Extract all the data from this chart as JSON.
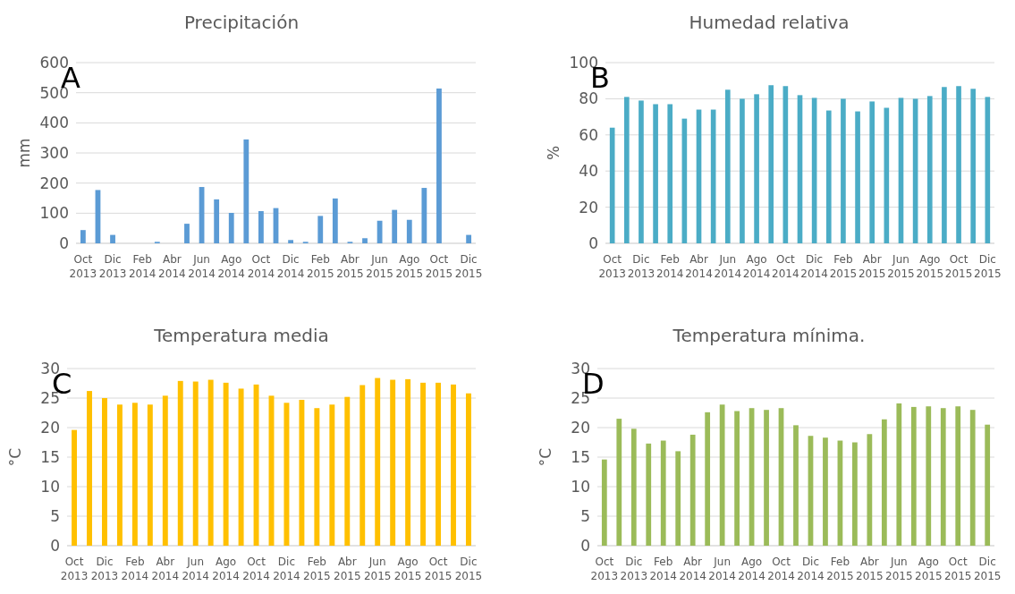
{
  "chart_data": [
    {
      "type": "bar",
      "title": "Precipitación",
      "ylabel": "mm",
      "annotations": [
        "A"
      ],
      "color": "#5b9bd5",
      "grid": "y",
      "ylim": [
        0,
        600
      ],
      "yticks": [
        0,
        100,
        200,
        300,
        400,
        500,
        600
      ],
      "categories": [
        "Oct 2013",
        null,
        "Dic 2013",
        null,
        "Feb 2014",
        null,
        "Abr 2014",
        null,
        "Jun 2014",
        null,
        "Ago 2014",
        null,
        "Oct 2014",
        null,
        "Dic 2014",
        null,
        "Feb 2015",
        null,
        "Abr 2015",
        null,
        "Jun 2015",
        null,
        "Ago 2015",
        null,
        "Oct 2015",
        null,
        "Dic 2015"
      ],
      "values": [
        44,
        177,
        28,
        0,
        0,
        5,
        0,
        65,
        187,
        146,
        101,
        345,
        107,
        117,
        11,
        5,
        91,
        149,
        5,
        17,
        75,
        111,
        78,
        184,
        514,
        0,
        28
      ]
    },
    {
      "type": "bar",
      "title": "Humedad relativa",
      "ylabel": "%",
      "annotations": [
        "B"
      ],
      "color": "#4bacc6",
      "grid": "y",
      "ylim": [
        0,
        100
      ],
      "yticks": [
        0,
        20,
        40,
        60,
        80,
        100
      ],
      "categories": [
        "Oct 2013",
        null,
        "Dic 2013",
        null,
        "Feb 2014",
        null,
        "Abr 2014",
        null,
        "Jun 2014",
        null,
        "Ago 2014",
        null,
        "Oct 2014",
        null,
        "Dic 2014",
        null,
        "Feb 2015",
        null,
        "Abr 2015",
        null,
        "Jun 2015",
        null,
        "Ago 2015",
        null,
        "Oct 2015",
        null,
        "Dic 2015"
      ],
      "values": [
        64,
        81,
        79,
        77,
        77,
        69,
        74,
        74,
        85,
        80,
        82.5,
        87.5,
        87,
        82,
        80.5,
        73.5,
        80,
        73,
        78.5,
        75,
        80.5,
        80,
        81.5,
        86.5,
        87,
        85.5,
        81
      ]
    },
    {
      "type": "bar",
      "title": "Temperatura media",
      "ylabel": "°C",
      "annotations": [
        "C"
      ],
      "color": "#ffc000",
      "grid": "y",
      "ylim": [
        0,
        30
      ],
      "yticks": [
        0,
        5,
        10,
        15,
        20,
        25,
        30
      ],
      "categories": [
        "Oct 2013",
        null,
        "Dic 2013",
        null,
        "Feb 2014",
        null,
        "Abr 2014",
        null,
        "Jun 2014",
        null,
        "Ago 2014",
        null,
        "Oct 2014",
        null,
        "Dic 2014",
        null,
        "Feb 2015",
        null,
        "Abr 2015",
        null,
        "Jun 2015",
        null,
        "Ago 2015",
        null,
        "Oct 2015",
        null,
        "Dic 2015"
      ],
      "values": [
        19.6,
        26.2,
        25.0,
        23.9,
        24.2,
        23.9,
        25.4,
        27.9,
        27.8,
        28.1,
        27.6,
        26.6,
        27.3,
        25.4,
        24.2,
        24.7,
        23.3,
        23.9,
        25.2,
        27.2,
        28.4,
        28.1,
        28.2,
        27.6,
        27.6,
        27.3,
        25.8
      ]
    },
    {
      "type": "bar",
      "title": "Temperatura mínima.",
      "ylabel": "°C",
      "annotations": [
        "D"
      ],
      "color": "#9bbb59",
      "grid": "y",
      "ylim": [
        0,
        30
      ],
      "yticks": [
        0,
        5,
        10,
        15,
        20,
        25,
        30
      ],
      "categories": [
        "Oct 2013",
        null,
        "Dic 2013",
        null,
        "Feb 2014",
        null,
        "Abr 2014",
        null,
        "Jun 2014",
        null,
        "Ago 2014",
        null,
        "Oct 2014",
        null,
        "Dic 2014",
        null,
        "Feb 2015",
        null,
        "Abr 2015",
        null,
        "Jun 2015",
        null,
        "Ago 2015",
        null,
        "Oct 2015",
        null,
        "Dic 2015"
      ],
      "values": [
        14.6,
        21.5,
        19.8,
        17.3,
        17.8,
        16.0,
        18.8,
        22.6,
        23.9,
        22.8,
        23.3,
        23.0,
        23.3,
        20.4,
        18.6,
        18.3,
        17.8,
        17.5,
        18.9,
        21.4,
        24.1,
        23.5,
        23.6,
        23.3,
        23.6,
        23.0,
        20.5
      ]
    }
  ]
}
